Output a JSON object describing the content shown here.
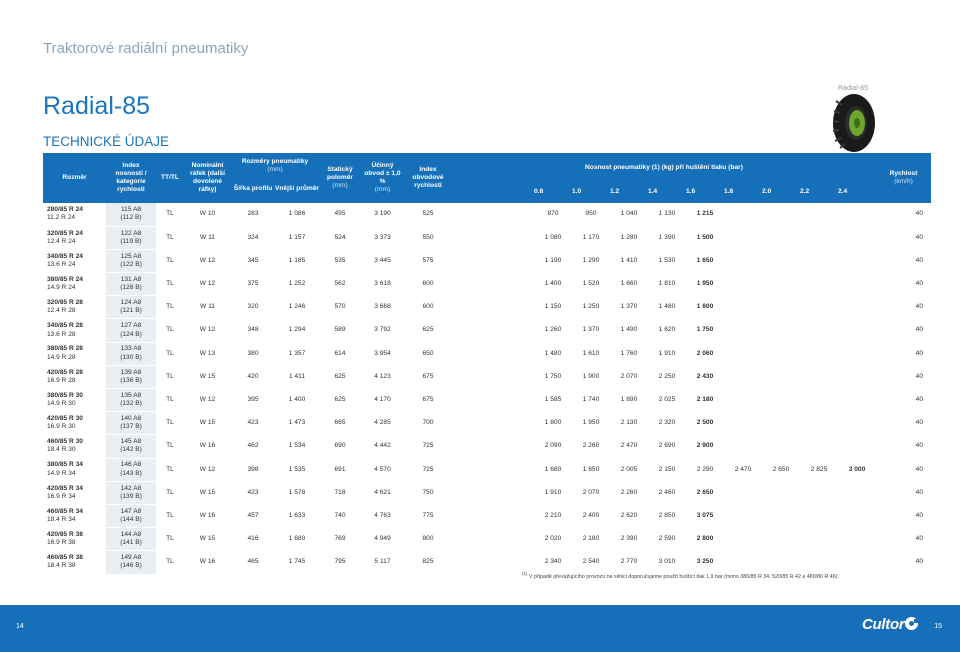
{
  "header": {
    "category_title": "Traktorové radiální pneumatiky",
    "product_title": "Radial-85",
    "section_title": "TECHNICKÉ ÚDAJE",
    "tire_image_label": "Radial-85"
  },
  "table": {
    "headers": {
      "size": "Rozměr",
      "load_index": "Index nosnosti / kategorie rychlosti",
      "tt_tl": "TT/TL",
      "rim": "Nominální ráfek (další dovolené ráfky)",
      "dims": "Rozměry pneumatiky",
      "dims_unit": "(mm)",
      "width": "Šířka profilu",
      "outer_diameter": "Vnější průměr",
      "static_radius": "Statický poloměr",
      "static_radius_unit": "(mm)",
      "rolling_circ": "Účinný obvod ± 1,0 %",
      "rolling_circ_unit": "(mm)",
      "circ_index": "Index obvodové rychlosti",
      "load_capacity": "Nosnost pneumatiky (1) (kg) při huštění tlaku (bar)",
      "speed": "Rychlost",
      "speed_unit": "(km/h)",
      "pressures": [
        "0.8",
        "1.0",
        "1.2",
        "1.4",
        "1.6",
        "1.8",
        "2.0",
        "2.2",
        "2.4"
      ]
    },
    "rows": [
      {
        "size": "280/85 R 24",
        "alt": "11.2 R 24",
        "index": "115 A8",
        "index2": "(112 B)",
        "tl": "TL",
        "rim": "W 10",
        "width": "283",
        "diameter": "1 086",
        "radius": "495",
        "circ": "3 190",
        "cindex": "525",
        "loads": [
          "870",
          "950",
          "1 040",
          "1 130",
          "1 215",
          "",
          "",
          "",
          ""
        ],
        "bold_idx": 4,
        "speed": "40"
      },
      {
        "size": "320/85 R 24",
        "alt": "12.4 R 24",
        "index": "122 A8",
        "index2": "(119 B)",
        "tl": "TL",
        "rim": "W 11",
        "width": "324",
        "diameter": "1 157",
        "radius": "524",
        "circ": "3 373",
        "cindex": "550",
        "loads": [
          "1 080",
          "1 170",
          "1 280",
          "1 390",
          "1 500",
          "",
          "",
          "",
          ""
        ],
        "bold_idx": 4,
        "speed": "40"
      },
      {
        "size": "340/85 R 24",
        "alt": "13.6 R 24",
        "index": "125 A8",
        "index2": "(122 B)",
        "tl": "TL",
        "rim": "W 12",
        "width": "345",
        "diameter": "1 185",
        "radius": "535",
        "circ": "3 445",
        "cindex": "575",
        "loads": [
          "1 190",
          "1 290",
          "1 410",
          "1 530",
          "1 650",
          "",
          "",
          "",
          ""
        ],
        "bold_idx": 4,
        "speed": "40"
      },
      {
        "size": "380/85 R 24",
        "alt": "14.9 R 24",
        "index": "131 A8",
        "index2": "(128 B)",
        "tl": "TL",
        "rim": "W 12",
        "width": "375",
        "diameter": "1 252",
        "radius": "562",
        "circ": "3 618",
        "cindex": "600",
        "loads": [
          "1 400",
          "1 520",
          "1 660",
          "1 810",
          "1 950",
          "",
          "",
          "",
          ""
        ],
        "bold_idx": 4,
        "speed": "40"
      },
      {
        "size": "320/85 R 28",
        "alt": "12.4 R 28",
        "index": "124 A8",
        "index2": "(121 B)",
        "tl": "TL",
        "rim": "W 11",
        "width": "320",
        "diameter": "1 246",
        "radius": "570",
        "circ": "3 668",
        "cindex": "600",
        "loads": [
          "1 150",
          "1 250",
          "1 370",
          "1 480",
          "1 600",
          "",
          "",
          "",
          ""
        ],
        "bold_idx": 4,
        "speed": "40"
      },
      {
        "size": "340/85 R 28",
        "alt": "13.6 R 28",
        "index": "127 A8",
        "index2": "(124 B)",
        "tl": "TL",
        "rim": "W 12",
        "width": "348",
        "diameter": "1 294",
        "radius": "589",
        "circ": "3 792",
        "cindex": "625",
        "loads": [
          "1 260",
          "1 370",
          "1 490",
          "1 620",
          "1 750",
          "",
          "",
          "",
          ""
        ],
        "bold_idx": 4,
        "speed": "40"
      },
      {
        "size": "380/85 R 28",
        "alt": "14.9 R 28",
        "index": "133 A8",
        "index2": "(130 B)",
        "tl": "TL",
        "rim": "W 13",
        "width": "380",
        "diameter": "1 357",
        "radius": "614",
        "circ": "3 954",
        "cindex": "650",
        "loads": [
          "1 480",
          "1 610",
          "1 760",
          "1 910",
          "2 060",
          "",
          "",
          "",
          ""
        ],
        "bold_idx": 4,
        "speed": "40"
      },
      {
        "size": "420/85 R 28",
        "alt": "16.9 R 28",
        "index": "139 A8",
        "index2": "(136 B)",
        "tl": "TL",
        "rim": "W 15",
        "width": "420",
        "diameter": "1 411",
        "radius": "625",
        "circ": "4 123",
        "cindex": "675",
        "loads": [
          "1 750",
          "1 900",
          "2 070",
          "2 250",
          "2 430",
          "",
          "",
          "",
          ""
        ],
        "bold_idx": 4,
        "speed": "40"
      },
      {
        "size": "380/85 R 30",
        "alt": "14.9 R 30",
        "index": "135 A8",
        "index2": "(132 B)",
        "tl": "TL",
        "rim": "W 12",
        "width": "395",
        "diameter": "1 400",
        "radius": "625",
        "circ": "4 170",
        "cindex": "675",
        "loads": [
          "1 585",
          "1 740",
          "1 890",
          "2 025",
          "2 180",
          "",
          "",
          "",
          ""
        ],
        "bold_idx": 4,
        "speed": "40"
      },
      {
        "size": "420/85 R 30",
        "alt": "16.9 R 30",
        "index": "140 A8",
        "index2": "(137 B)",
        "tl": "TL",
        "rim": "W 15",
        "width": "423",
        "diameter": "1 473",
        "radius": "665",
        "circ": "4 285",
        "cindex": "700",
        "loads": [
          "1 800",
          "1 950",
          "2 130",
          "2 320",
          "2 500",
          "",
          "",
          "",
          ""
        ],
        "bold_idx": 4,
        "speed": "40"
      },
      {
        "size": "460/85 R 30",
        "alt": "18.4 R 30",
        "index": "145 A8",
        "index2": "(142 B)",
        "tl": "TL",
        "rim": "W 16",
        "width": "462",
        "diameter": "1 534",
        "radius": "690",
        "circ": "4 442",
        "cindex": "725",
        "loads": [
          "2 090",
          "2 260",
          "2 470",
          "2 690",
          "2 900",
          "",
          "",
          "",
          ""
        ],
        "bold_idx": 4,
        "speed": "40"
      },
      {
        "size": "380/85 R 34",
        "alt": "14.9 R 34",
        "index": "146 A8",
        "index2": "(143 B)",
        "tl": "TL",
        "rim": "W 12",
        "width": "398",
        "diameter": "1 535",
        "radius": "691",
        "circ": "4 570",
        "cindex": "725",
        "loads": [
          "1 680",
          "1 850",
          "2 005",
          "2 150",
          "2 290",
          "2 470",
          "2 650",
          "2 825",
          "3 000"
        ],
        "bold_idx": 8,
        "speed": "40"
      },
      {
        "size": "420/85 R 34",
        "alt": "16.9 R 34",
        "index": "142 A8",
        "index2": "(139 B)",
        "tl": "TL",
        "rim": "W 15",
        "width": "423",
        "diameter": "1 578",
        "radius": "718",
        "circ": "4 621",
        "cindex": "750",
        "loads": [
          "1 910",
          "2 070",
          "2 260",
          "2 460",
          "2 650",
          "",
          "",
          "",
          ""
        ],
        "bold_idx": 4,
        "speed": "40"
      },
      {
        "size": "460/85 R 34",
        "alt": "18.4 R 34",
        "index": "147 A8",
        "index2": "(144 B)",
        "tl": "TL",
        "rim": "W 16",
        "width": "457",
        "diameter": "1 633",
        "radius": "740",
        "circ": "4 763",
        "cindex": "775",
        "loads": [
          "2 210",
          "2 400",
          "2 620",
          "2 850",
          "3 075",
          "",
          "",
          "",
          ""
        ],
        "bold_idx": 4,
        "speed": "40"
      },
      {
        "size": "420/85 R 38",
        "alt": "16.9 R 38",
        "index": "144 A8",
        "index2": "(141 B)",
        "tl": "TL",
        "rim": "W 15",
        "width": "416",
        "diameter": "1 680",
        "radius": "769",
        "circ": "4 949",
        "cindex": "800",
        "loads": [
          "2 020",
          "2 180",
          "2 390",
          "2 590",
          "2 800",
          "",
          "",
          "",
          ""
        ],
        "bold_idx": 4,
        "speed": "40"
      },
      {
        "size": "460/85 R 38",
        "alt": "18.4 R 38",
        "index": "149 A8",
        "index2": "(146 B)",
        "tl": "TL",
        "rim": "W 16",
        "width": "465",
        "diameter": "1 745",
        "radius": "795",
        "circ": "5 117",
        "cindex": "825",
        "loads": [
          "2 340",
          "2 540",
          "2 770",
          "3 010",
          "3 250",
          "",
          "",
          "",
          ""
        ],
        "bold_idx": 4,
        "speed": "40"
      }
    ]
  },
  "footnote": {
    "mark": "(1)",
    "text": "V případě převažujícího provozu na silnici doporučujeme použít huštící tlak 1,9 bar (mimo 380/85 R 34, 520/85 R 42 a 480/80 R 46)."
  },
  "footer": {
    "page_left": "14",
    "page_right": "15",
    "brand": "Cultor"
  },
  "colors": {
    "header_blue": "#1670b9",
    "title_blue": "#1a75c0",
    "index_bg": "#e9eef3"
  }
}
